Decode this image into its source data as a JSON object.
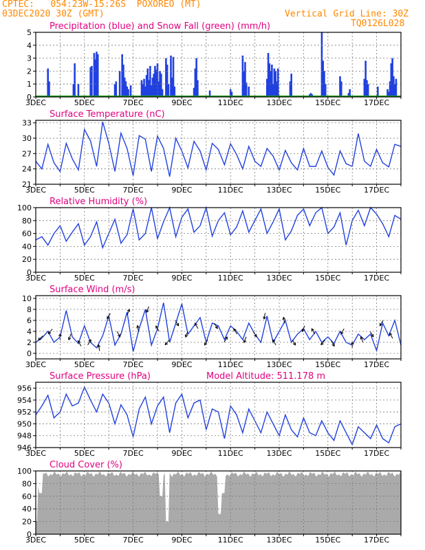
{
  "header": {
    "org": "CPTEC:",
    "coords": "054:23W-15:26S",
    "station": "POXOREO (MT)",
    "run": "03DEC2020 30Z (GMT)",
    "grid_note": "Vertical Grid Line: 30Z",
    "model": "TQ0126L028",
    "model_altitude": "Model Altitude: 511.178 m"
  },
  "colors": {
    "header": "#ff8800",
    "title": "#e0007f",
    "series": "#2040e0",
    "snow": "#1a9a1a",
    "cloud": "#aaaaaa",
    "grid": "#777777"
  },
  "x_tick_labels": [
    "3DEC",
    "5DEC",
    "7DEC",
    "9DEC",
    "11DEC",
    "13DEC",
    "15DEC",
    "17DEC"
  ],
  "chart_data": [
    {
      "type": "bar",
      "title": "Precipitation (blue) and Snow Fall (green) (mm/h)",
      "ylim": [
        0,
        5
      ],
      "yticks": [
        "0",
        "1",
        "2",
        "3",
        "4",
        "5"
      ],
      "xlim": [
        3.0,
        18.0
      ],
      "series": [
        {
          "name": "Precipitation",
          "x": [
            3.5,
            3.55,
            4.55,
            4.6,
            4.75,
            5.25,
            5.3,
            5.4,
            5.45,
            5.5,
            5.55,
            6.25,
            6.3,
            6.45,
            6.55,
            6.6,
            6.65,
            6.7,
            6.75,
            6.8,
            6.9,
            7.35,
            7.4,
            7.45,
            7.5,
            7.55,
            7.6,
            7.65,
            7.7,
            7.75,
            7.8,
            7.85,
            7.9,
            7.95,
            8.0,
            8.05,
            8.1,
            8.15,
            8.2,
            8.35,
            8.4,
            8.45,
            8.55,
            8.6,
            8.65,
            8.7,
            9.5,
            9.55,
            9.6,
            9.65,
            10.15,
            11.0,
            11.05,
            11.5,
            11.55,
            11.6,
            11.65,
            11.75,
            12.5,
            12.55,
            12.6,
            12.65,
            12.7,
            12.75,
            12.8,
            12.85,
            12.9,
            12.95,
            13.45,
            13.5,
            14.25,
            14.3,
            14.35,
            14.75,
            14.8,
            14.85,
            14.9,
            15.5,
            15.55,
            15.85,
            15.9,
            16.5,
            16.55,
            16.6,
            16.65,
            17.05,
            17.45,
            17.5,
            17.55,
            17.6,
            17.65,
            17.7,
            17.75,
            17.8
          ],
          "values": [
            2.2,
            1.2,
            1.0,
            2.6,
            1.0,
            2.3,
            2.4,
            3.4,
            2.9,
            3.5,
            3.3,
            1.0,
            1.2,
            2.0,
            3.3,
            2.5,
            1.5,
            1.2,
            0.8,
            0.6,
            0.9,
            1.3,
            1.0,
            1.4,
            0.8,
            1.7,
            2.2,
            1.3,
            2.4,
            0.9,
            1.5,
            1.8,
            2.4,
            2.1,
            2.6,
            1.2,
            2.0,
            1.8,
            0.6,
            3.0,
            2.5,
            1.0,
            3.2,
            1.5,
            3.1,
            0.8,
            0.7,
            2.2,
            3.0,
            1.3,
            0.5,
            0.6,
            0.4,
            3.2,
            2.0,
            2.7,
            1.1,
            0.8,
            1.4,
            3.4,
            2.6,
            2.0,
            2.5,
            1.0,
            2.2,
            2.0,
            1.2,
            2.2,
            1.2,
            1.8,
            0.2,
            0.3,
            0.2,
            5.0,
            2.8,
            2.0,
            1.0,
            1.6,
            1.2,
            0.3,
            0.6,
            1.4,
            2.8,
            1.3,
            1.0,
            0.8,
            0.6,
            0.4,
            1.2,
            2.6,
            3.0,
            1.6,
            1.0,
            1.4
          ]
        },
        {
          "name": "Snow Fall",
          "values": [
            0
          ]
        }
      ]
    },
    {
      "type": "line",
      "title": "Surface Temperature (nC)",
      "ylim": [
        21,
        33.5
      ],
      "yticks": [
        "21",
        "24",
        "27",
        "30",
        "33"
      ],
      "x": [
        3.0,
        3.25,
        3.5,
        3.75,
        4.0,
        4.25,
        4.5,
        4.75,
        5.0,
        5.25,
        5.5,
        5.75,
        6.0,
        6.25,
        6.5,
        6.75,
        7.0,
        7.25,
        7.5,
        7.75,
        8.0,
        8.25,
        8.5,
        8.75,
        9.0,
        9.25,
        9.5,
        9.75,
        10.0,
        10.25,
        10.5,
        10.75,
        11.0,
        11.25,
        11.5,
        11.75,
        12.0,
        12.25,
        12.5,
        12.75,
        13.0,
        13.25,
        13.5,
        13.75,
        14.0,
        14.25,
        14.5,
        14.75,
        15.0,
        15.25,
        15.5,
        15.75,
        16.0,
        16.25,
        16.5,
        16.75,
        17.0,
        17.25,
        17.5,
        17.75,
        18.0
      ],
      "values": [
        25.5,
        24.0,
        28.8,
        25.2,
        23.5,
        29.0,
        26.0,
        23.8,
        31.7,
        29.5,
        24.5,
        33.2,
        29.0,
        23.5,
        31.0,
        28.0,
        22.7,
        30.5,
        29.8,
        23.5,
        30.4,
        28.0,
        22.5,
        30.0,
        27.5,
        24.2,
        29.4,
        27.5,
        23.8,
        29.0,
        27.8,
        24.8,
        28.9,
        26.8,
        24.0,
        28.4,
        25.5,
        24.5,
        28.0,
        26.5,
        23.8,
        27.6,
        25.2,
        23.8,
        28.0,
        24.5,
        24.5,
        27.5,
        24.3,
        22.8,
        27.5,
        25.0,
        24.5,
        30.9,
        25.5,
        24.5,
        27.8,
        25.2,
        24.4,
        28.8,
        28.4
      ]
    },
    {
      "type": "line",
      "title": "Relative Humidity (%)",
      "ylim": [
        0,
        100
      ],
      "yticks": [
        "0",
        "20",
        "40",
        "60",
        "80",
        "100"
      ],
      "x": [
        3.0,
        3.25,
        3.5,
        3.75,
        4.0,
        4.25,
        4.5,
        4.75,
        5.0,
        5.25,
        5.5,
        5.75,
        6.0,
        6.25,
        6.5,
        6.75,
        7.0,
        7.25,
        7.5,
        7.75,
        8.0,
        8.25,
        8.5,
        8.75,
        9.0,
        9.25,
        9.5,
        9.75,
        10.0,
        10.25,
        10.5,
        10.75,
        11.0,
        11.25,
        11.5,
        11.75,
        12.0,
        12.25,
        12.5,
        12.75,
        13.0,
        13.25,
        13.5,
        13.75,
        14.0,
        14.25,
        14.5,
        14.75,
        15.0,
        15.25,
        15.5,
        15.75,
        16.0,
        16.25,
        16.5,
        16.75,
        17.0,
        17.25,
        17.5,
        17.75,
        18.0
      ],
      "values": [
        50,
        55,
        42,
        60,
        72,
        48,
        62,
        75,
        42,
        55,
        78,
        38,
        60,
        82,
        45,
        58,
        98,
        50,
        60,
        100,
        52,
        78,
        100,
        55,
        85,
        98,
        62,
        72,
        100,
        56,
        80,
        92,
        58,
        70,
        95,
        62,
        80,
        98,
        60,
        78,
        98,
        50,
        64,
        88,
        98,
        72,
        92,
        100,
        60,
        70,
        92,
        42,
        80,
        96,
        72,
        100,
        90,
        75,
        55,
        88,
        82
      ]
    },
    {
      "type": "line",
      "title": "Surface Wind (m/s)",
      "ylim": [
        -1,
        10.5
      ],
      "yticks": [
        "0",
        "2",
        "4",
        "6",
        "8",
        "10"
      ],
      "x": [
        3.0,
        3.25,
        3.5,
        3.75,
        4.0,
        4.25,
        4.5,
        4.75,
        5.0,
        5.25,
        5.5,
        5.75,
        6.0,
        6.25,
        6.5,
        6.75,
        7.0,
        7.25,
        7.5,
        7.75,
        8.0,
        8.25,
        8.5,
        8.75,
        9.0,
        9.25,
        9.5,
        9.75,
        10.0,
        10.25,
        10.5,
        10.75,
        11.0,
        11.25,
        11.5,
        11.75,
        12.0,
        12.25,
        12.5,
        12.75,
        13.0,
        13.25,
        13.5,
        13.75,
        14.0,
        14.25,
        14.5,
        14.75,
        15.0,
        15.25,
        15.5,
        15.75,
        16.0,
        16.25,
        16.5,
        16.75,
        17.0,
        17.25,
        17.5,
        17.75,
        18.0
      ],
      "values": [
        2.0,
        2.8,
        4.0,
        2.0,
        3.0,
        7.8,
        3.0,
        1.8,
        5.0,
        2.0,
        1.0,
        3.2,
        6.8,
        1.5,
        3.5,
        7.5,
        0.3,
        4.5,
        8.0,
        1.5,
        4.5,
        9.2,
        2.0,
        5.5,
        9.0,
        3.5,
        5.0,
        6.5,
        2.0,
        5.5,
        5.0,
        2.5,
        5.0,
        4.0,
        2.5,
        5.5,
        3.5,
        2.0,
        6.8,
        2.0,
        4.0,
        6.0,
        2.0,
        3.5,
        4.5,
        2.5,
        4.0,
        2.0,
        3.0,
        1.8,
        4.0,
        2.0,
        1.5,
        3.5,
        2.5,
        3.5,
        0.5,
        5.5,
        3.2,
        6.0,
        1.5
      ],
      "wind_arrow_directions_deg": [
        225,
        230,
        90,
        250,
        120,
        60,
        100,
        240,
        300,
        70,
        100,
        250,
        120,
        230,
        300,
        250,
        120,
        240,
        300,
        60,
        120,
        250,
        300,
        260,
        120,
        100,
        300,
        250,
        120,
        230,
        300,
        240,
        90,
        110,
        300,
        240,
        120
      ]
    },
    {
      "type": "line",
      "title": "Surface Pressure (hPa)",
      "ylim": [
        946,
        957
      ],
      "yticks": [
        "946",
        "948",
        "950",
        "952",
        "954",
        "956"
      ],
      "x": [
        3.0,
        3.25,
        3.5,
        3.75,
        4.0,
        4.25,
        4.5,
        4.75,
        5.0,
        5.25,
        5.5,
        5.75,
        6.0,
        6.25,
        6.5,
        6.75,
        7.0,
        7.25,
        7.5,
        7.75,
        8.0,
        8.25,
        8.5,
        8.75,
        9.0,
        9.25,
        9.5,
        9.75,
        10.0,
        10.25,
        10.5,
        10.75,
        11.0,
        11.25,
        11.5,
        11.75,
        12.0,
        12.25,
        12.5,
        12.75,
        13.0,
        13.25,
        13.5,
        13.75,
        14.0,
        14.25,
        14.5,
        14.75,
        15.0,
        15.25,
        15.5,
        15.75,
        16.0,
        16.25,
        16.5,
        16.75,
        17.0,
        17.25,
        17.5,
        17.75,
        18.0
      ],
      "values": [
        951.5,
        953.0,
        954.8,
        951.0,
        952.0,
        955.0,
        953.0,
        953.5,
        956.2,
        954.0,
        952.0,
        955.0,
        953.5,
        950.0,
        953.2,
        951.5,
        947.8,
        952.5,
        954.5,
        950.0,
        953.0,
        954.5,
        948.5,
        953.5,
        955.0,
        951.0,
        953.5,
        954.0,
        949.0,
        952.5,
        952.0,
        947.5,
        953.0,
        951.5,
        948.5,
        952.5,
        950.5,
        948.5,
        952.0,
        950.0,
        948.0,
        951.5,
        949.0,
        947.8,
        951.0,
        948.5,
        948.0,
        950.5,
        948.5,
        947.2,
        950.5,
        948.5,
        946.5,
        949.5,
        948.5,
        947.5,
        949.8,
        947.5,
        946.8,
        949.5,
        950.0
      ]
    },
    {
      "type": "bar",
      "title": "Cloud Cover (%)",
      "ylim": [
        0,
        100
      ],
      "yticks": [
        "0",
        "20",
        "40",
        "60",
        "80",
        "100"
      ],
      "xlim": [
        3.0,
        18.0
      ],
      "cloud_base_percent": 95,
      "dips": [
        [
          3.0,
          0
        ],
        [
          3.1,
          55
        ],
        [
          3.2,
          45
        ],
        [
          3.35,
          80
        ],
        [
          3.5,
          90
        ],
        [
          6.25,
          90
        ],
        [
          7.25,
          85
        ],
        [
          8.15,
          40
        ],
        [
          8.4,
          0
        ],
        [
          9.4,
          80
        ],
        [
          10.55,
          12
        ],
        [
          10.7,
          45
        ],
        [
          11.5,
          95
        ],
        [
          15.3,
          92
        ]
      ]
    }
  ]
}
